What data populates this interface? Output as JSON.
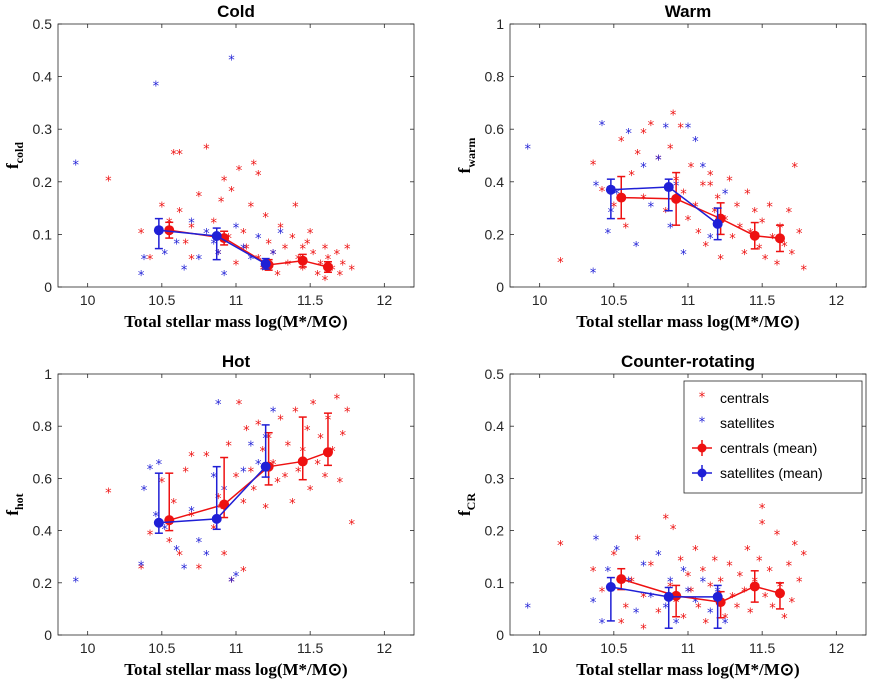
{
  "colors": {
    "centrals": "#ee1111",
    "satellites": "#1f1fd6"
  },
  "legend": {
    "entries": [
      {
        "label": "centrals",
        "kind": "star",
        "color": "#ee1111"
      },
      {
        "label": "satellites",
        "kind": "star",
        "color": "#1f1fd6"
      },
      {
        "label": "centrals (mean)",
        "kind": "mean",
        "color": "#ee1111"
      },
      {
        "label": "satellites (mean)",
        "kind": "mean",
        "color": "#1f1fd6"
      }
    ]
  },
  "chart_data": [
    {
      "type": "scatter",
      "title": "Cold",
      "xlabel": "Total stellar mass log(M*/M⊙)",
      "ylabel": "f",
      "ylabel_sub": "cold",
      "xlim": [
        9.8,
        12.2
      ],
      "ylim": [
        0,
        0.5
      ],
      "xticks": [
        "10",
        "10.5",
        "11",
        "11.5",
        "12"
      ],
      "xtick_values": [
        10,
        10.5,
        11,
        11.5,
        12
      ],
      "yticks": [
        "0",
        "0.1",
        "0.2",
        "0.3",
        "0.4",
        "0.5"
      ],
      "ytick_values": [
        0,
        0.1,
        0.2,
        0.3,
        0.4,
        0.5
      ],
      "centrals": {
        "x": [
          10.14,
          10.36,
          10.42,
          10.5,
          10.58,
          10.62,
          10.66,
          10.7,
          10.75,
          10.8,
          10.85,
          10.88,
          10.92,
          10.95,
          10.97,
          11.0,
          11.02,
          11.05,
          11.07,
          11.1,
          11.12,
          11.15,
          11.18,
          11.2,
          11.22,
          11.25,
          11.28,
          11.3,
          11.33,
          11.35,
          11.38,
          11.4,
          11.42,
          11.45,
          11.48,
          11.5,
          11.52,
          11.55,
          11.57,
          11.6,
          11.62,
          11.65,
          11.68,
          11.7,
          11.72,
          11.75,
          11.78,
          10.55,
          10.7,
          10.9,
          11.15,
          11.45,
          11.6,
          10.62
        ],
        "y": [
          0.2,
          0.1,
          0.05,
          0.15,
          0.25,
          0.14,
          0.08,
          0.11,
          0.17,
          0.26,
          0.12,
          0.06,
          0.2,
          0.09,
          0.18,
          0.04,
          0.22,
          0.1,
          0.07,
          0.15,
          0.23,
          0.05,
          0.03,
          0.13,
          0.08,
          0.06,
          0.02,
          0.11,
          0.07,
          0.04,
          0.09,
          0.15,
          0.05,
          0.03,
          0.08,
          0.1,
          0.06,
          0.02,
          0.04,
          0.07,
          0.05,
          0.03,
          0.06,
          0.02,
          0.04,
          0.07,
          0.03,
          0.12,
          0.05,
          0.16,
          0.21,
          0.07,
          0.01,
          0.25
        ]
      },
      "satellites": {
        "x": [
          9.92,
          10.36,
          10.38,
          10.46,
          10.48,
          10.52,
          10.6,
          10.65,
          10.7,
          10.75,
          10.8,
          10.85,
          10.88,
          10.92,
          10.97,
          11.0,
          11.05,
          11.1,
          11.15,
          11.2,
          11.25,
          11.3
        ],
        "y": [
          0.23,
          0.02,
          0.05,
          0.38,
          0.1,
          0.06,
          0.08,
          0.03,
          0.12,
          0.05,
          0.1,
          0.08,
          0.06,
          0.02,
          0.43,
          0.11,
          0.07,
          0.05,
          0.09,
          0.04,
          0.06,
          0.1
        ]
      },
      "centrals_mean": {
        "x": [
          10.55,
          10.92,
          11.22,
          11.45,
          11.62
        ],
        "y": [
          0.108,
          0.093,
          0.042,
          0.05,
          0.038
        ],
        "err_low": [
          0.015,
          0.013,
          0.01,
          0.012,
          0.01
        ],
        "err_high": [
          0.015,
          0.013,
          0.01,
          0.012,
          0.01
        ]
      },
      "satellites_mean": {
        "x": [
          10.48,
          10.87,
          11.2
        ],
        "y": [
          0.108,
          0.097,
          0.044
        ],
        "err_low": [
          0.035,
          0.045,
          0.01
        ],
        "err_high": [
          0.022,
          0.015,
          0.01
        ]
      }
    },
    {
      "type": "scatter",
      "title": "Warm",
      "xlabel": "Total stellar mass log(M*/M⊙)",
      "ylabel": "f",
      "ylabel_sub": "warm",
      "xlim": [
        9.8,
        12.2
      ],
      "ylim": [
        0,
        1
      ],
      "xticks": [
        "10",
        "10.5",
        "11",
        "11.5",
        "12"
      ],
      "xtick_values": [
        10,
        10.5,
        11,
        11.5,
        12
      ],
      "yticks": [
        "0",
        "0.2",
        "0.4",
        "0.6",
        "0.8",
        "1"
      ],
      "ytick_values": [
        0,
        0.2,
        0.4,
        0.6,
        0.8,
        1
      ],
      "centrals": {
        "x": [
          10.14,
          10.36,
          10.42,
          10.5,
          10.58,
          10.62,
          10.66,
          10.7,
          10.75,
          10.8,
          10.85,
          10.88,
          10.92,
          10.95,
          10.97,
          11.0,
          11.02,
          11.05,
          11.07,
          11.1,
          11.12,
          11.15,
          11.18,
          11.2,
          11.22,
          11.25,
          11.28,
          11.3,
          11.33,
          11.35,
          11.38,
          11.4,
          11.42,
          11.45,
          11.48,
          11.5,
          11.52,
          11.55,
          11.57,
          11.6,
          11.62,
          11.65,
          11.68,
          11.7,
          11.72,
          11.75,
          11.78,
          10.55,
          10.7,
          10.9,
          11.15
        ],
        "y": [
          0.09,
          0.46,
          0.36,
          0.3,
          0.22,
          0.42,
          0.5,
          0.33,
          0.61,
          0.48,
          0.28,
          0.52,
          0.4,
          0.6,
          0.35,
          0.25,
          0.45,
          0.3,
          0.2,
          0.38,
          0.15,
          0.42,
          0.28,
          0.33,
          0.1,
          0.25,
          0.4,
          0.18,
          0.3,
          0.22,
          0.12,
          0.35,
          0.2,
          0.28,
          0.14,
          0.24,
          0.1,
          0.3,
          0.18,
          0.08,
          0.22,
          0.15,
          0.28,
          0.12,
          0.45,
          0.2,
          0.06,
          0.55,
          0.58,
          0.65,
          0.38
        ]
      },
      "satellites": {
        "x": [
          9.92,
          10.36,
          10.38,
          10.42,
          10.46,
          10.48,
          10.52,
          10.6,
          10.65,
          10.7,
          10.75,
          10.8,
          10.85,
          10.88,
          10.92,
          10.97,
          11.0,
          11.05,
          11.1,
          11.15,
          11.2,
          11.25
        ],
        "y": [
          0.52,
          0.05,
          0.38,
          0.61,
          0.2,
          0.28,
          0.35,
          0.58,
          0.15,
          0.45,
          0.3,
          0.48,
          0.6,
          0.22,
          0.38,
          0.12,
          0.6,
          0.55,
          0.45,
          0.18,
          0.25,
          0.35
        ]
      },
      "centrals_mean": {
        "x": [
          10.55,
          10.92,
          11.22,
          11.45,
          11.62
        ],
        "y": [
          0.34,
          0.335,
          0.26,
          0.195,
          0.185
        ],
        "err_low": [
          0.08,
          0.1,
          0.06,
          0.05,
          0.05
        ],
        "err_high": [
          0.08,
          0.1,
          0.06,
          0.05,
          0.05
        ]
      },
      "satellites_mean": {
        "x": [
          10.48,
          10.87,
          11.2
        ],
        "y": [
          0.37,
          0.38,
          0.24
        ],
        "err_low": [
          0.11,
          0.09,
          0.06
        ],
        "err_high": [
          0.04,
          0.03,
          0.06
        ]
      }
    },
    {
      "type": "scatter",
      "title": "Hot",
      "xlabel": "Total stellar mass log(M*/M⊙)",
      "ylabel": "f",
      "ylabel_sub": "hot",
      "xlim": [
        9.8,
        12.2
      ],
      "ylim": [
        0,
        1
      ],
      "xticks": [
        "10",
        "10.5",
        "11",
        "11.5",
        "12"
      ],
      "xtick_values": [
        10,
        10.5,
        11,
        11.5,
        12
      ],
      "yticks": [
        "0",
        "0.2",
        "0.4",
        "0.6",
        "0.8",
        "1"
      ],
      "ytick_values": [
        0,
        0.2,
        0.4,
        0.6,
        0.8,
        1
      ],
      "centrals": {
        "x": [
          10.14,
          10.36,
          10.42,
          10.5,
          10.58,
          10.62,
          10.66,
          10.7,
          10.75,
          10.8,
          10.85,
          10.88,
          10.92,
          10.95,
          10.97,
          11.0,
          11.02,
          11.05,
          11.07,
          11.1,
          11.12,
          11.15,
          11.18,
          11.2,
          11.22,
          11.25,
          11.28,
          11.3,
          11.33,
          11.35,
          11.38,
          11.4,
          11.42,
          11.45,
          11.48,
          11.5,
          11.52,
          11.55,
          11.57,
          11.6,
          11.62,
          11.65,
          11.68,
          11.7,
          11.72,
          11.75,
          11.78,
          10.55,
          10.7,
          10.9,
          11.05
        ],
        "y": [
          0.54,
          0.25,
          0.38,
          0.58,
          0.5,
          0.3,
          0.62,
          0.45,
          0.25,
          0.68,
          0.4,
          0.52,
          0.3,
          0.72,
          0.2,
          0.6,
          0.88,
          0.5,
          0.78,
          0.62,
          0.55,
          0.8,
          0.7,
          0.48,
          0.75,
          0.65,
          0.58,
          0.82,
          0.6,
          0.72,
          0.5,
          0.85,
          0.62,
          0.7,
          0.78,
          0.55,
          0.88,
          0.65,
          0.75,
          0.6,
          0.82,
          0.7,
          0.9,
          0.58,
          0.76,
          0.85,
          0.42,
          0.35,
          0.68,
          0.48,
          0.24
        ]
      },
      "satellites": {
        "x": [
          9.92,
          10.36,
          10.38,
          10.42,
          10.46,
          10.48,
          10.52,
          10.6,
          10.65,
          10.7,
          10.75,
          10.8,
          10.85,
          10.88,
          10.92,
          10.97,
          11.0,
          11.05,
          11.1,
          11.15,
          11.2,
          11.25
        ],
        "y": [
          0.2,
          0.26,
          0.55,
          0.63,
          0.45,
          0.65,
          0.4,
          0.32,
          0.25,
          0.47,
          0.35,
          0.3,
          0.6,
          0.88,
          0.55,
          0.2,
          0.22,
          0.62,
          0.72,
          0.65,
          0.75,
          0.85
        ]
      },
      "centrals_mean": {
        "x": [
          10.55,
          10.92,
          11.22,
          11.45,
          11.62
        ],
        "y": [
          0.44,
          0.5,
          0.645,
          0.665,
          0.7
        ],
        "err_low": [
          0.04,
          0.05,
          0.07,
          0.07,
          0.05
        ],
        "err_high": [
          0.18,
          0.18,
          0.13,
          0.17,
          0.15
        ]
      },
      "satellites_mean": {
        "x": [
          10.48,
          10.87,
          11.2
        ],
        "y": [
          0.43,
          0.445,
          0.645
        ],
        "err_low": [
          0.04,
          0.04,
          0.04
        ],
        "err_high": [
          0.19,
          0.2,
          0.16
        ]
      }
    },
    {
      "type": "scatter",
      "title": "Counter-rotating",
      "xlabel": "Total stellar mass log(M*/M⊙)",
      "ylabel": "f",
      "ylabel_sub": "CR",
      "xlim": [
        9.8,
        12.2
      ],
      "ylim": [
        0,
        0.5
      ],
      "xticks": [
        "10",
        "10.5",
        "11",
        "11.5",
        "12"
      ],
      "xtick_values": [
        10,
        10.5,
        11,
        11.5,
        12
      ],
      "yticks": [
        "0",
        "0.1",
        "0.2",
        "0.3",
        "0.4",
        "0.5"
      ],
      "ytick_values": [
        0,
        0.1,
        0.2,
        0.3,
        0.4,
        0.5
      ],
      "legend": true,
      "centrals": {
        "x": [
          10.14,
          10.36,
          10.42,
          10.5,
          10.58,
          10.62,
          10.66,
          10.7,
          10.75,
          10.8,
          10.85,
          10.88,
          10.92,
          10.95,
          10.97,
          11.0,
          11.02,
          11.05,
          11.07,
          11.1,
          11.12,
          11.15,
          11.18,
          11.2,
          11.22,
          11.25,
          11.28,
          11.3,
          11.33,
          11.35,
          11.38,
          11.4,
          11.42,
          11.45,
          11.48,
          11.5,
          11.52,
          11.55,
          11.57,
          11.6,
          11.62,
          11.65,
          11.68,
          11.7,
          11.72,
          11.75,
          11.78,
          10.55,
          10.7,
          10.9,
          11.5
        ],
        "y": [
          0.17,
          0.12,
          0.08,
          0.15,
          0.05,
          0.1,
          0.18,
          0.07,
          0.13,
          0.04,
          0.22,
          0.09,
          0.06,
          0.14,
          0.03,
          0.11,
          0.08,
          0.16,
          0.05,
          0.12,
          0.02,
          0.09,
          0.14,
          0.06,
          0.1,
          0.03,
          0.13,
          0.07,
          0.05,
          0.11,
          0.08,
          0.16,
          0.04,
          0.1,
          0.14,
          0.24,
          0.07,
          0.12,
          0.05,
          0.19,
          0.09,
          0.03,
          0.13,
          0.06,
          0.17,
          0.1,
          0.15,
          0.02,
          0.01,
          0.2,
          0.21
        ]
      },
      "satellites": {
        "x": [
          9.92,
          10.36,
          10.38,
          10.42,
          10.46,
          10.48,
          10.52,
          10.6,
          10.65,
          10.7,
          10.75,
          10.8,
          10.85,
          10.88,
          10.92,
          10.97,
          11.0,
          11.05,
          11.1,
          11.15,
          11.2,
          11.25
        ],
        "y": [
          0.05,
          0.06,
          0.18,
          0.02,
          0.12,
          0.08,
          0.16,
          0.1,
          0.04,
          0.13,
          0.07,
          0.15,
          0.05,
          0.1,
          0.02,
          0.12,
          0.08,
          0.06,
          0.1,
          0.04,
          0.08,
          0.02
        ]
      },
      "centrals_mean": {
        "x": [
          10.55,
          10.92,
          11.22,
          11.45,
          11.62
        ],
        "y": [
          0.107,
          0.075,
          0.063,
          0.093,
          0.08
        ],
        "err_low": [
          0.02,
          0.04,
          0.03,
          0.03,
          0.03
        ],
        "err_high": [
          0.02,
          0.02,
          0.02,
          0.03,
          0.02
        ]
      },
      "satellites_mean": {
        "x": [
          10.48,
          10.87,
          11.2
        ],
        "y": [
          0.092,
          0.073,
          0.073
        ],
        "err_low": [
          0.065,
          0.06,
          0.06
        ],
        "err_high": [
          0.018,
          0.018,
          0.022
        ]
      }
    }
  ]
}
